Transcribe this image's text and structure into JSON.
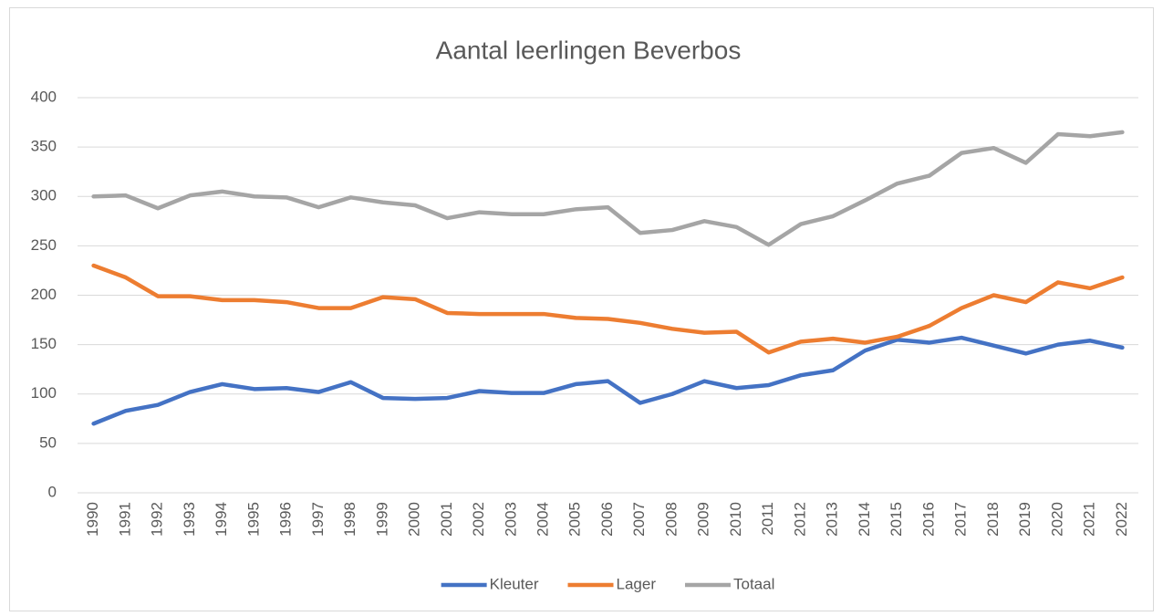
{
  "chart_data": {
    "type": "line",
    "title": "Aantal leerlingen Beverbos",
    "x": [
      1990,
      1991,
      1992,
      1993,
      1994,
      1995,
      1996,
      1997,
      1998,
      1999,
      2000,
      2001,
      2002,
      2003,
      2004,
      2005,
      2006,
      2007,
      2008,
      2009,
      2010,
      2011,
      2012,
      2013,
      2014,
      2015,
      2016,
      2017,
      2018,
      2019,
      2020,
      2021,
      2022
    ],
    "series": [
      {
        "name": "Kleuter",
        "color": "#4472c4",
        "values": [
          70,
          83,
          89,
          102,
          110,
          105,
          106,
          102,
          112,
          96,
          95,
          96,
          103,
          101,
          101,
          110,
          113,
          91,
          100,
          113,
          106,
          109,
          119,
          124,
          144,
          155,
          152,
          157,
          149,
          141,
          150,
          154,
          147
        ]
      },
      {
        "name": "Lager",
        "color": "#ed7d31",
        "values": [
          230,
          218,
          199,
          199,
          195,
          195,
          193,
          187,
          187,
          198,
          196,
          182,
          181,
          181,
          181,
          177,
          176,
          172,
          166,
          162,
          163,
          142,
          153,
          156,
          152,
          158,
          169,
          187,
          200,
          193,
          213,
          207,
          218
        ]
      },
      {
        "name": "Totaal",
        "color": "#a5a5a5",
        "values": [
          300,
          301,
          288,
          301,
          305,
          300,
          299,
          289,
          299,
          294,
          291,
          278,
          284,
          282,
          282,
          287,
          289,
          263,
          266,
          275,
          269,
          251,
          272,
          280,
          296,
          313,
          321,
          344,
          349,
          334,
          363,
          361,
          365
        ]
      }
    ],
    "ylim": [
      0,
      400
    ],
    "yticks": [
      0,
      50,
      100,
      150,
      200,
      250,
      300,
      350,
      400
    ],
    "grid": true,
    "legend": "bottom"
  }
}
